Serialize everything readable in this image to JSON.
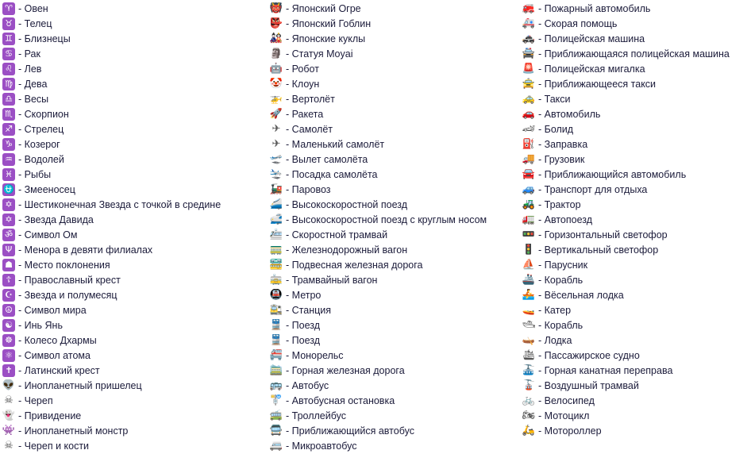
{
  "accent_color": "#9b4fc4",
  "columns": [
    {
      "items": [
        {
          "icon": "aries-icon",
          "glyph": "♈",
          "label": "- Овен",
          "style": "purple"
        },
        {
          "icon": "taurus-icon",
          "glyph": "♉",
          "label": "- Телец",
          "style": "purple"
        },
        {
          "icon": "gemini-icon",
          "glyph": "♊",
          "label": "- Близнецы",
          "style": "purple"
        },
        {
          "icon": "cancer-icon",
          "glyph": "♋",
          "label": "- Рак",
          "style": "purple"
        },
        {
          "icon": "leo-icon",
          "glyph": "♌",
          "label": "- Лев",
          "style": "purple"
        },
        {
          "icon": "virgo-icon",
          "glyph": "♍",
          "label": "- Дева",
          "style": "purple"
        },
        {
          "icon": "libra-icon",
          "glyph": "♎",
          "label": "- Весы",
          "style": "purple"
        },
        {
          "icon": "scorpio-icon",
          "glyph": "♏",
          "label": "- Скорпион",
          "style": "purple"
        },
        {
          "icon": "sagittarius-icon",
          "glyph": "♐",
          "label": "- Стрелец",
          "style": "purple"
        },
        {
          "icon": "capricorn-icon",
          "glyph": "♑",
          "label": "- Козерог",
          "style": "purple"
        },
        {
          "icon": "aquarius-icon",
          "glyph": "♒",
          "label": "- Водолей",
          "style": "purple"
        },
        {
          "icon": "pisces-icon",
          "glyph": "♓",
          "label": "- Рыбы",
          "style": "purple"
        },
        {
          "icon": "ophiuchus-icon",
          "glyph": "⛎",
          "label": "- Змееносец",
          "style": "purple"
        },
        {
          "icon": "dotted-six-pointed-star-icon",
          "glyph": "✡",
          "label": "- Шестиконечная Звезда с точкой в средине",
          "style": "purple"
        },
        {
          "icon": "star-of-david-icon",
          "glyph": "✡",
          "label": "- Звезда Давида",
          "style": "purple"
        },
        {
          "icon": "om-icon",
          "glyph": "ॐ",
          "label": "- Символ Ом",
          "style": "purple"
        },
        {
          "icon": "menorah-icon",
          "glyph": "Ψ",
          "label": "- Менора в девяти филиалах",
          "style": "purple"
        },
        {
          "icon": "place-of-worship-icon",
          "glyph": "☗",
          "label": "- Место поклонения",
          "style": "purple"
        },
        {
          "icon": "orthodox-cross-icon",
          "glyph": "☦",
          "label": "- Православный крест",
          "style": "purple"
        },
        {
          "icon": "star-and-crescent-icon",
          "glyph": "☪",
          "label": "- Звезда и полумесяц",
          "style": "purple"
        },
        {
          "icon": "peace-symbol-icon",
          "glyph": "☮",
          "label": "- Символ мира",
          "style": "purple"
        },
        {
          "icon": "yin-yang-icon",
          "glyph": "☯",
          "label": "- Инь Янь",
          "style": "purple"
        },
        {
          "icon": "wheel-of-dharma-icon",
          "glyph": "☸",
          "label": "- Колесо Дхармы",
          "style": "purple"
        },
        {
          "icon": "atom-symbol-icon",
          "glyph": "⚛",
          "label": "- Символ атома",
          "style": "purple"
        },
        {
          "icon": "latin-cross-icon",
          "glyph": "✝",
          "label": "- Латинский крест",
          "style": "purple"
        },
        {
          "icon": "alien-icon",
          "glyph": "👽",
          "label": "- Инопланетный пришелец",
          "style": "plain"
        },
        {
          "icon": "skull-icon",
          "glyph": "☠",
          "label": "- Череп",
          "style": "plain"
        },
        {
          "icon": "ghost-icon",
          "glyph": "👻",
          "label": "- Привидение",
          "style": "plain"
        },
        {
          "icon": "alien-monster-icon",
          "glyph": "👾",
          "label": "- Инопланетный монстр",
          "style": "plain"
        },
        {
          "icon": "skull-and-crossbones-icon",
          "glyph": "☠",
          "label": "- Череп и кости",
          "style": "plain"
        }
      ]
    },
    {
      "items": [
        {
          "icon": "japanese-ogre-icon",
          "glyph": "👹",
          "label": "- Японский Огре",
          "style": "plain"
        },
        {
          "icon": "japanese-goblin-icon",
          "glyph": "👺",
          "label": "- Японский Гоблин",
          "style": "plain"
        },
        {
          "icon": "japanese-dolls-icon",
          "glyph": "🎎",
          "label": "- Японские куклы",
          "style": "plain"
        },
        {
          "icon": "moyai-icon",
          "glyph": "🗿",
          "label": "- Статуя Moyai",
          "style": "plain"
        },
        {
          "icon": "robot-icon",
          "glyph": "🤖",
          "label": "- Робот",
          "style": "plain"
        },
        {
          "icon": "clown-icon",
          "glyph": "🤡",
          "label": "- Клоун",
          "style": "plain"
        },
        {
          "icon": "helicopter-icon",
          "glyph": "🚁",
          "label": "- Вертолёт",
          "style": "plain"
        },
        {
          "icon": "rocket-icon",
          "glyph": "🚀",
          "label": "- Ракета",
          "style": "plain"
        },
        {
          "icon": "airplane-icon",
          "glyph": "✈",
          "label": "- Самолёт",
          "style": "plain"
        },
        {
          "icon": "small-airplane-icon",
          "glyph": "✈",
          "label": "- Маленький самолёт",
          "style": "plain"
        },
        {
          "icon": "airplane-departure-icon",
          "glyph": "🛫",
          "label": "- Вылет самолёта",
          "style": "plain"
        },
        {
          "icon": "airplane-arrival-icon",
          "glyph": "🛬",
          "label": "- Посадка самолёта",
          "style": "plain"
        },
        {
          "icon": "steam-locomotive-icon",
          "glyph": "🚂",
          "label": "- Паровоз",
          "style": "plain"
        },
        {
          "icon": "high-speed-train-icon",
          "glyph": "🚄",
          "label": "- Высокоскоростной поезд",
          "style": "plain"
        },
        {
          "icon": "bullet-train-icon",
          "glyph": "🚅",
          "label": "- Высокоскоростной поезд с круглым носом",
          "style": "plain"
        },
        {
          "icon": "light-rail-icon",
          "glyph": "🚈",
          "label": "- Скоростной трамвай",
          "style": "plain"
        },
        {
          "icon": "railway-car-icon",
          "glyph": "🚃",
          "label": "- Железнодорожный вагон",
          "style": "plain"
        },
        {
          "icon": "suspension-railway-icon",
          "glyph": "🚟",
          "label": "- Подвесная железная дорога",
          "style": "plain"
        },
        {
          "icon": "tram-car-icon",
          "glyph": "🚋",
          "label": "- Трамвайный вагон",
          "style": "plain"
        },
        {
          "icon": "metro-icon",
          "glyph": "🚇",
          "label": "- Метро",
          "style": "plain"
        },
        {
          "icon": "station-icon",
          "glyph": "🚉",
          "label": "- Станция",
          "style": "plain"
        },
        {
          "icon": "train-icon",
          "glyph": "🚆",
          "label": "- Поезд",
          "style": "plain"
        },
        {
          "icon": "oncoming-train-icon",
          "glyph": "🚆",
          "label": "- Поезд",
          "style": "plain"
        },
        {
          "icon": "monorail-icon",
          "glyph": "🚝",
          "label": "- Монорельс",
          "style": "plain"
        },
        {
          "icon": "mountain-railway-icon",
          "glyph": "🚞",
          "label": "- Горная железная дорога",
          "style": "plain"
        },
        {
          "icon": "bus-icon",
          "glyph": "🚌",
          "label": "- Автобус",
          "style": "plain"
        },
        {
          "icon": "bus-stop-icon",
          "glyph": "🚏",
          "label": "- Автобусная остановка",
          "style": "plain"
        },
        {
          "icon": "trolleybus-icon",
          "glyph": "🚎",
          "label": "- Троллейбус",
          "style": "plain"
        },
        {
          "icon": "oncoming-bus-icon",
          "glyph": "🚍",
          "label": "- Приближающийся автобус",
          "style": "plain"
        },
        {
          "icon": "minibus-icon",
          "glyph": "🚐",
          "label": "- Микроавтобус",
          "style": "plain"
        }
      ]
    },
    {
      "items": [
        {
          "icon": "fire-engine-icon",
          "glyph": "🚒",
          "label": "- Пожарный автомобиль",
          "style": "plain"
        },
        {
          "icon": "ambulance-icon",
          "glyph": "🚑",
          "label": "- Скорая помощь",
          "style": "plain"
        },
        {
          "icon": "police-car-icon",
          "glyph": "🚓",
          "label": "- Полицейская машина",
          "style": "plain"
        },
        {
          "icon": "oncoming-police-car-icon",
          "glyph": "🚔",
          "label": "- Приближающаяся полицейская машина",
          "style": "plain"
        },
        {
          "icon": "police-light-icon",
          "glyph": "🚨",
          "label": "- Полицейская мигалка",
          "style": "plain"
        },
        {
          "icon": "oncoming-taxi-icon",
          "glyph": "🚖",
          "label": "- Приближающееся такси",
          "style": "plain"
        },
        {
          "icon": "taxi-icon",
          "glyph": "🚕",
          "label": "- Такси",
          "style": "plain"
        },
        {
          "icon": "automobile-icon",
          "glyph": "🚗",
          "label": "- Автомобиль",
          "style": "plain"
        },
        {
          "icon": "racing-car-icon",
          "glyph": "🏎",
          "label": "- Болид",
          "style": "plain"
        },
        {
          "icon": "fuel-pump-icon",
          "glyph": "⛽",
          "label": "- Заправка",
          "style": "plain"
        },
        {
          "icon": "delivery-truck-icon",
          "glyph": "🚚",
          "label": "- Грузовик",
          "style": "plain"
        },
        {
          "icon": "oncoming-automobile-icon",
          "glyph": "🚘",
          "label": "- Приближающийся автомобиль",
          "style": "plain"
        },
        {
          "icon": "recreational-vehicle-icon",
          "glyph": "🚙",
          "label": "- Транспорт для отдыха",
          "style": "plain"
        },
        {
          "icon": "tractor-icon",
          "glyph": "🚜",
          "label": "- Трактор",
          "style": "plain"
        },
        {
          "icon": "articulated-lorry-icon",
          "glyph": "🚛",
          "label": "- Автопоезд",
          "style": "plain"
        },
        {
          "icon": "horizontal-traffic-light-icon",
          "glyph": "🚥",
          "label": "- Горизонтальный светофор",
          "style": "plain"
        },
        {
          "icon": "vertical-traffic-light-icon",
          "glyph": "🚦",
          "label": "- Вертикальный светофор",
          "style": "plain"
        },
        {
          "icon": "sailboat-icon",
          "glyph": "⛵",
          "label": "- Парусник",
          "style": "plain"
        },
        {
          "icon": "ship-icon",
          "glyph": "🚢",
          "label": "- Корабль",
          "style": "plain"
        },
        {
          "icon": "rowboat-icon",
          "glyph": "🚣",
          "label": "- Вёсельная лодка",
          "style": "plain"
        },
        {
          "icon": "speedboat-icon",
          "glyph": "🚤",
          "label": "- Катер",
          "style": "plain"
        },
        {
          "icon": "motor-boat-icon",
          "glyph": "🛥",
          "label": "- Корабль",
          "style": "plain"
        },
        {
          "icon": "canoe-icon",
          "glyph": "🛶",
          "label": "- Лодка",
          "style": "plain"
        },
        {
          "icon": "passenger-ship-icon",
          "glyph": "🛳",
          "label": "- Пассажирское судно",
          "style": "plain"
        },
        {
          "icon": "mountain-cableway-icon",
          "glyph": "🚠",
          "label": "- Горная канатная переправа",
          "style": "plain"
        },
        {
          "icon": "aerial-tramway-icon",
          "glyph": "🚡",
          "label": "- Воздушный трамвай",
          "style": "plain"
        },
        {
          "icon": "bicycle-icon",
          "glyph": "🚲",
          "label": "- Велосипед",
          "style": "plain"
        },
        {
          "icon": "motorcycle-icon",
          "glyph": "🏍",
          "label": "- Мотоцикл",
          "style": "plain"
        },
        {
          "icon": "motor-scooter-icon",
          "glyph": "🛵",
          "label": "- Мотороллер",
          "style": "plain"
        }
      ]
    }
  ]
}
